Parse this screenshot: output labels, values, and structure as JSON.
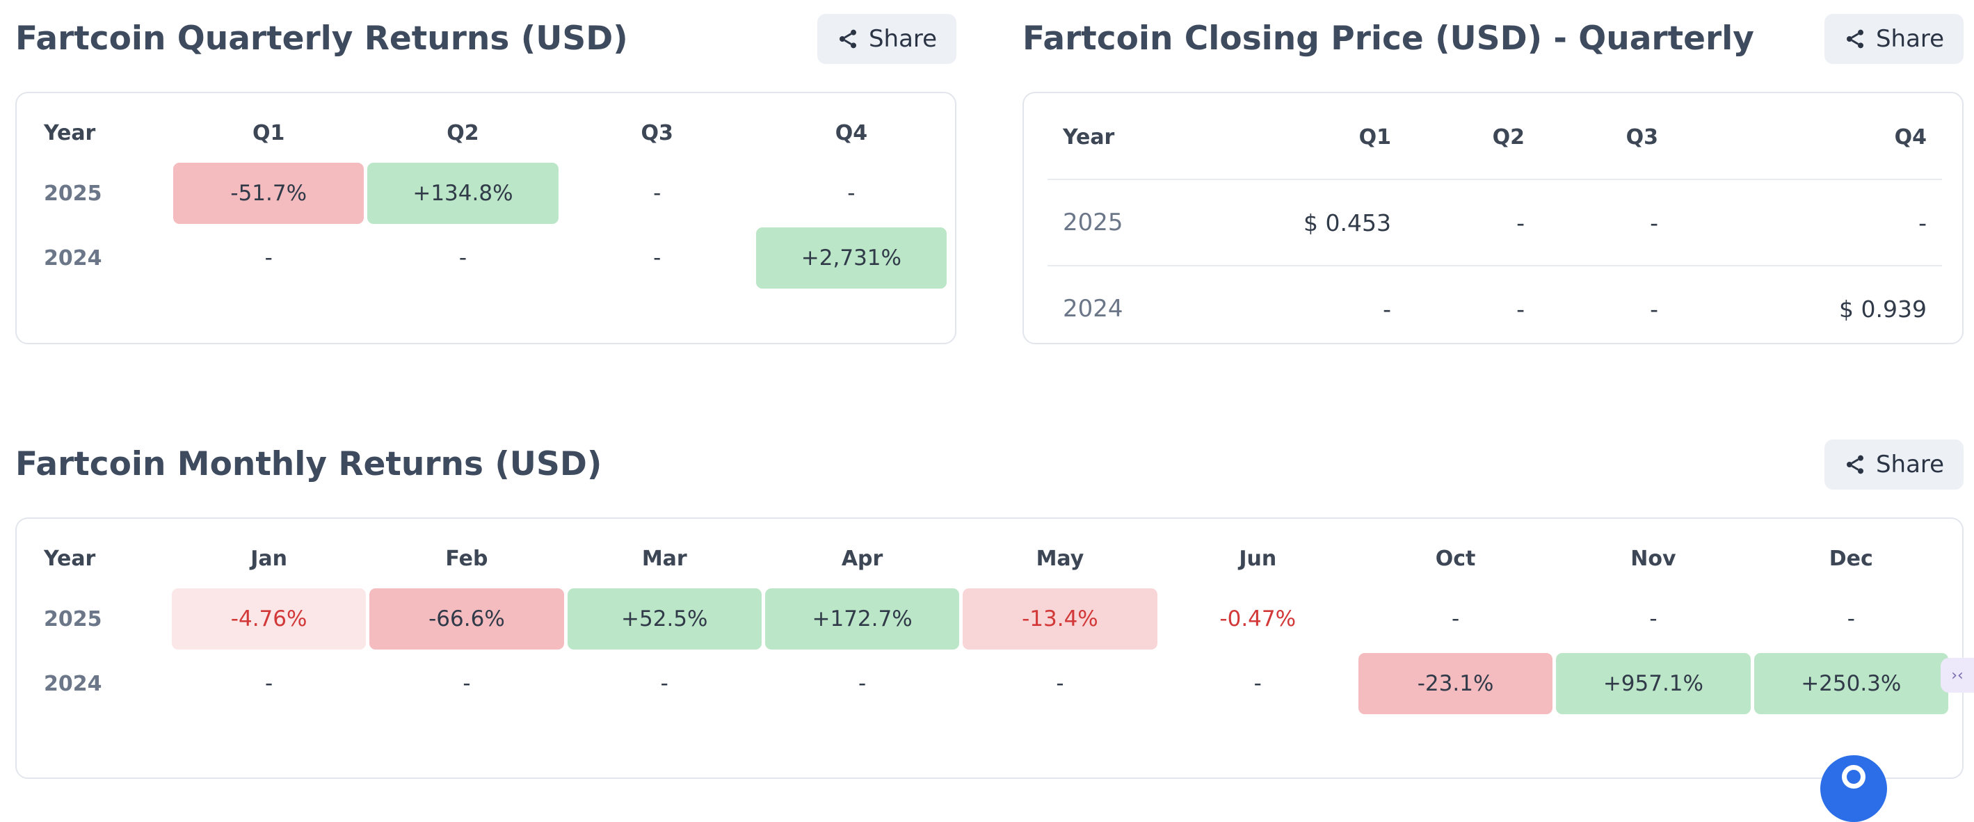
{
  "quarterly_returns": {
    "title": "Fartcoin Quarterly Returns (USD)",
    "share_label": "Share",
    "headers": [
      "Year",
      "Q1",
      "Q2",
      "Q3",
      "Q4"
    ],
    "rows": [
      {
        "year": "2025",
        "cells": [
          "-51.7%",
          "+134.8%",
          "-",
          "-"
        ]
      },
      {
        "year": "2024",
        "cells": [
          "-",
          "-",
          "-",
          "+2,731%"
        ]
      }
    ]
  },
  "closing_price": {
    "title": "Fartcoin Closing Price (USD) - Quarterly",
    "share_label": "Share",
    "headers": [
      "Year",
      "Q1",
      "Q2",
      "Q3",
      "Q4"
    ],
    "rows": [
      {
        "year": "2025",
        "cells": [
          "$ 0.453",
          "-",
          "-",
          "-"
        ]
      },
      {
        "year": "2024",
        "cells": [
          "-",
          "-",
          "-",
          "$ 0.939"
        ]
      }
    ]
  },
  "monthly_returns": {
    "title": "Fartcoin Monthly Returns (USD)",
    "share_label": "Share",
    "headers": [
      "Year",
      "Jan",
      "Feb",
      "Mar",
      "Apr",
      "May",
      "Jun",
      "Oct",
      "Nov",
      "Dec"
    ],
    "rows": [
      {
        "year": "2025",
        "cells": [
          "-4.76%",
          "-66.6%",
          "+52.5%",
          "+172.7%",
          "-13.4%",
          "-0.47%",
          "-",
          "-",
          "-"
        ]
      },
      {
        "year": "2024",
        "cells": [
          "-",
          "-",
          "-",
          "-",
          "-",
          "-",
          "-23.1%",
          "+957.1%",
          "+250.3%"
        ]
      }
    ]
  },
  "colors": {
    "positive_bg": "#bce6c8",
    "negative_strong_bg": "#f4bcbf",
    "negative_mid_bg": "#f8d5d7",
    "negative_light_bg": "#fbe7e7",
    "negative_text": "#d23838",
    "title_text": "#3e4a5e"
  },
  "icons": {
    "share": "share-icon",
    "side_tab": "collapse-arrows-icon",
    "chat": "chat-bubble-icon"
  }
}
